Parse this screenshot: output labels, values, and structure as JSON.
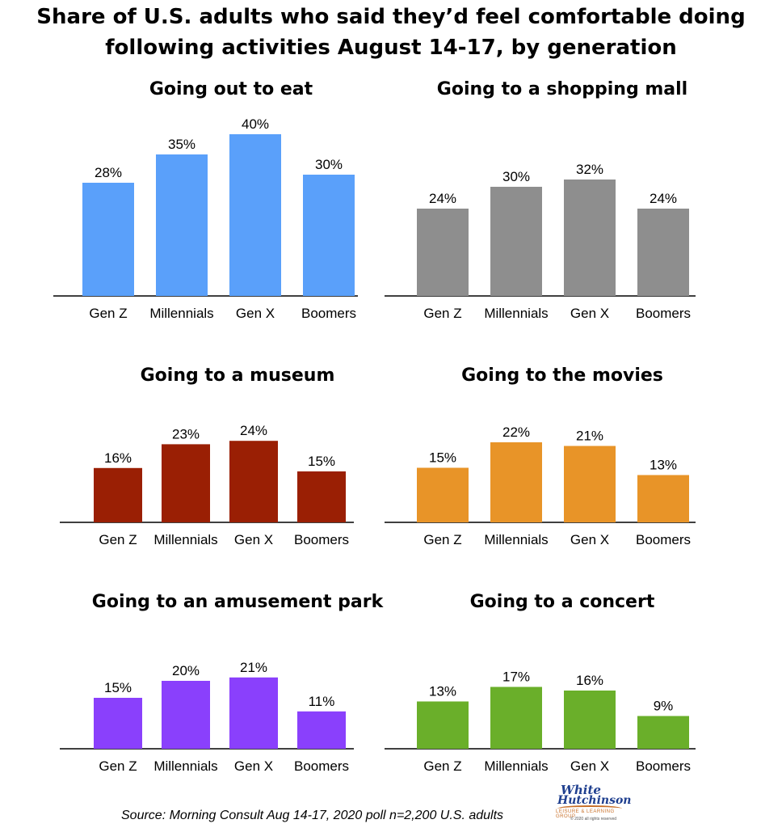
{
  "title": "Share of U.S. adults who said they’d feel comfortable doing following activities August 14-17, by generation",
  "source": "Source: Morning Consult Aug 14-17, 2020 poll n=2,200 U.S. adults",
  "logo": {
    "line1": "White",
    "line2": "Hutchinson",
    "tagline": "LEISURE & LEARNING GROUP",
    "rights": "© 2020 all rights reserved"
  },
  "colors": {
    "eat": "#5aa0fa",
    "mall": "#8e8e8e",
    "museum": "#9a1f04",
    "movies": "#e89428",
    "amusement": "#8a40fc",
    "concert": "#6aaf2a"
  },
  "chart_data": [
    {
      "type": "bar",
      "title": "Going out to eat",
      "categories": [
        "Gen Z",
        "Millennials",
        "Gen X",
        "Boomers"
      ],
      "values": [
        28,
        35,
        40,
        30
      ],
      "labels": [
        "28%",
        "35%",
        "40%",
        "30%"
      ],
      "unit": "%",
      "color": "#5aa0fa"
    },
    {
      "type": "bar",
      "title": "Going to a shopping mall",
      "categories": [
        "Gen Z",
        "Millennials",
        "Gen X",
        "Boomers"
      ],
      "values": [
        24,
        30,
        32,
        24
      ],
      "labels": [
        "24%",
        "30%",
        "32%",
        "24%"
      ],
      "unit": "%",
      "color": "#8e8e8e"
    },
    {
      "type": "bar",
      "title": "Going to a museum",
      "categories": [
        "Gen Z",
        "Millennials",
        "Gen X",
        "Boomers"
      ],
      "values": [
        16,
        23,
        24,
        15
      ],
      "labels": [
        "16%",
        "23%",
        "24%",
        "15%"
      ],
      "unit": "%",
      "color": "#9a1f04"
    },
    {
      "type": "bar",
      "title": "Going to the movies",
      "categories": [
        "Gen Z",
        "Millennials",
        "Gen X",
        "Boomers"
      ],
      "values": [
        15,
        22,
        21,
        13
      ],
      "labels": [
        "15%",
        "22%",
        "21%",
        "13%"
      ],
      "unit": "%",
      "color": "#e89428"
    },
    {
      "type": "bar",
      "title": "Going to an amusement park",
      "categories": [
        "Gen Z",
        "Millennials",
        "Gen X",
        "Boomers"
      ],
      "values": [
        15,
        20,
        21,
        11
      ],
      "labels": [
        "15%",
        "20%",
        "21%",
        "11%"
      ],
      "unit": "%",
      "color": "#8a40fc"
    },
    {
      "type": "bar",
      "title": "Going to a concert",
      "categories": [
        "Gen Z",
        "Millennials",
        "Gen X",
        "Boomers"
      ],
      "values": [
        13,
        17,
        16,
        9
      ],
      "labels": [
        "13%",
        "17%",
        "16%",
        "9%"
      ],
      "unit": "%",
      "color": "#6aaf2a"
    }
  ]
}
